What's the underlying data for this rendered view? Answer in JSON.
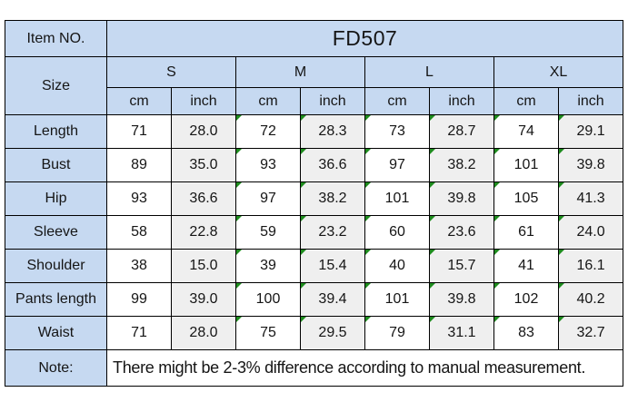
{
  "table": {
    "item_no_label": "Item NO.",
    "item_no_value": "FD507",
    "size_label": "Size",
    "size_groups": [
      "S",
      "M",
      "L",
      "XL"
    ],
    "unit_headers": [
      "cm",
      "inch"
    ],
    "column_keys": [
      "s-cm",
      "s-inch",
      "m-cm",
      "m-inch",
      "l-cm",
      "l-inch",
      "xl-cm",
      "xl-inch"
    ],
    "rows": [
      {
        "label": "Length",
        "values": [
          "71",
          "28.0",
          "72",
          "28.3",
          "73",
          "28.7",
          "74",
          "29.1"
        ]
      },
      {
        "label": "Bust",
        "values": [
          "89",
          "35.0",
          "93",
          "36.6",
          "97",
          "38.2",
          "101",
          "39.8"
        ]
      },
      {
        "label": "Hip",
        "values": [
          "93",
          "36.6",
          "97",
          "38.2",
          "101",
          "39.8",
          "105",
          "41.3"
        ]
      },
      {
        "label": "Sleeve",
        "values": [
          "58",
          "22.8",
          "59",
          "23.2",
          "60",
          "23.6",
          "61",
          "24.0"
        ]
      },
      {
        "label": "Shoulder",
        "values": [
          "38",
          "15.0",
          "39",
          "15.4",
          "40",
          "15.7",
          "41",
          "16.1"
        ]
      },
      {
        "label": "Pants length",
        "values": [
          "99",
          "39.0",
          "100",
          "39.4",
          "101",
          "39.8",
          "102",
          "40.2"
        ]
      },
      {
        "label": "Waist",
        "values": [
          "71",
          "28.0",
          "75",
          "29.5",
          "79",
          "31.1",
          "83",
          "32.7"
        ]
      }
    ],
    "flagged_value_columns": [
      2,
      3,
      4,
      5,
      6,
      7
    ],
    "flag_icon_name": "cell-flag-triangle",
    "note_label": "Note:",
    "note_text": "There might be 2-3% difference according to manual measurement.",
    "colors": {
      "header_bg": "#c6d9f1",
      "inch_column_bg": "#efefef",
      "cm_column_bg": "#ffffff",
      "grid_border": "#000000",
      "flag_triangle": "#1e8c1e",
      "text": "#151515"
    }
  }
}
